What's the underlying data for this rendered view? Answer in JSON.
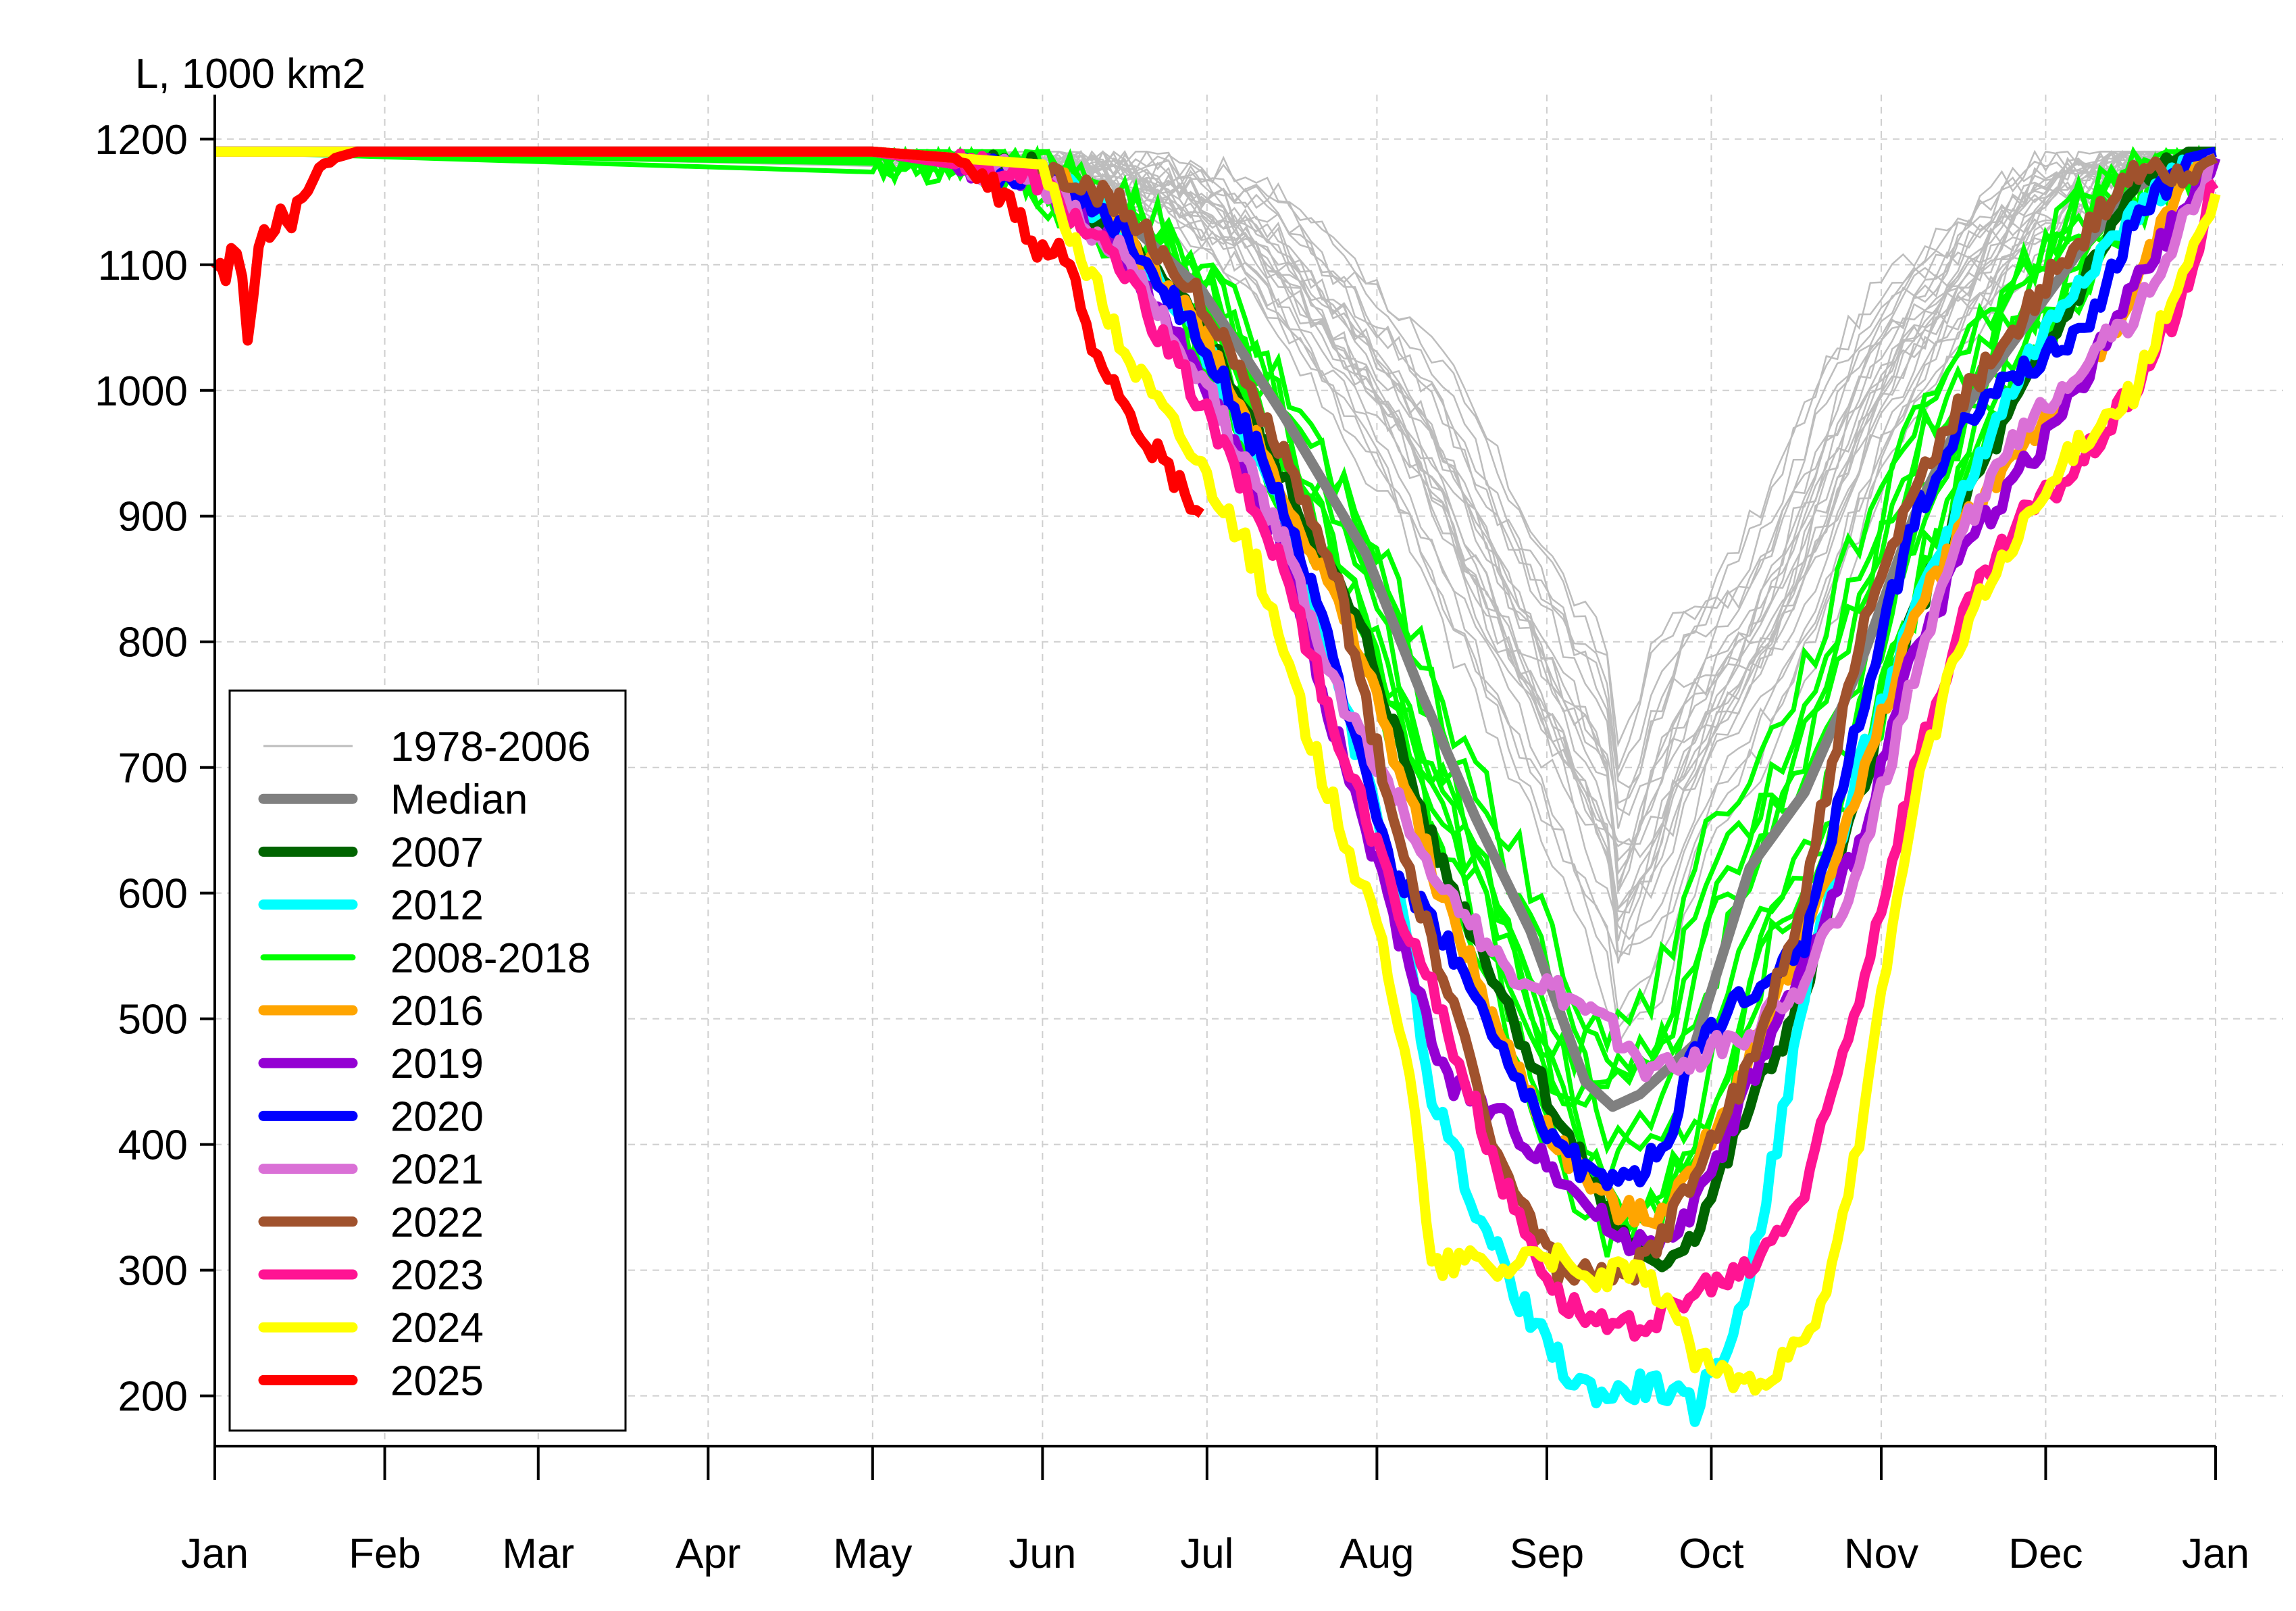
{
  "chart_data": {
    "type": "line",
    "title": "",
    "ylabel": "L, 1000 km2",
    "xlabel": "",
    "x_unit": "day of year",
    "xlim": [
      0,
      365
    ],
    "ylim": [
      160,
      1230
    ],
    "grid": true,
    "legend_position": "bottom-left",
    "x_ticks": [
      {
        "label": "Jan",
        "day": 0
      },
      {
        "label": "Feb",
        "day": 31
      },
      {
        "label": "Mar",
        "day": 59
      },
      {
        "label": "Apr",
        "day": 90
      },
      {
        "label": "May",
        "day": 120
      },
      {
        "label": "Jun",
        "day": 151
      },
      {
        "label": "Jul",
        "day": 181
      },
      {
        "label": "Aug",
        "day": 212
      },
      {
        "label": "Sep",
        "day": 243
      },
      {
        "label": "Oct",
        "day": 273
      },
      {
        "label": "Nov",
        "day": 304
      },
      {
        "label": "Dec",
        "day": 334
      },
      {
        "label": "Jan",
        "day": 365
      }
    ],
    "y_ticks": [
      200,
      300,
      400,
      500,
      600,
      700,
      800,
      900,
      1000,
      1100,
      1200
    ],
    "legend": [
      {
        "label": "1978-2006",
        "color": "#bdbdbd",
        "width": "thin"
      },
      {
        "label": "Median",
        "color": "#808080",
        "width": "thick"
      },
      {
        "label": "2007",
        "color": "#006400",
        "width": "thick"
      },
      {
        "label": "2012",
        "color": "#00ffff",
        "width": "thick"
      },
      {
        "label": "2008-2018",
        "color": "#00ff00",
        "width": "medium"
      },
      {
        "label": "2016",
        "color": "#ffa500",
        "width": "thick"
      },
      {
        "label": "2019",
        "color": "#9400d3",
        "width": "thick"
      },
      {
        "label": "2020",
        "color": "#0000ff",
        "width": "thick"
      },
      {
        "label": "2021",
        "color": "#da70d6",
        "width": "thick"
      },
      {
        "label": "2022",
        "color": "#a0522d",
        "width": "thick"
      },
      {
        "label": "2023",
        "color": "#ff1493",
        "width": "thick"
      },
      {
        "label": "2024",
        "color": "#ffff00",
        "width": "thick"
      },
      {
        "label": "2025",
        "color": "#ff0000",
        "width": "thick"
      }
    ],
    "series": [
      {
        "name": "Median",
        "color": "#808080",
        "width": "thick",
        "x": [
          0,
          120,
          150,
          165,
          180,
          195,
          210,
          220,
          230,
          240,
          250,
          255,
          260,
          265,
          270,
          280,
          290,
          300,
          310,
          320,
          330,
          340,
          350,
          360,
          365
        ],
        "y": [
          1190,
          1190,
          1180,
          1140,
          1080,
          980,
          870,
          760,
          660,
          570,
          450,
          430,
          440,
          460,
          480,
          620,
          680,
          780,
          900,
          990,
          1050,
          1110,
          1160,
          1185,
          1190
        ]
      },
      {
        "name": "2007",
        "color": "#006400",
        "width": "thick",
        "x": [
          0,
          120,
          150,
          165,
          180,
          195,
          210,
          222,
          235,
          245,
          255,
          262,
          270,
          280,
          290,
          300,
          310,
          320,
          330,
          340,
          350,
          360,
          365
        ],
        "y": [
          1190,
          1190,
          1175,
          1120,
          1050,
          930,
          800,
          640,
          520,
          420,
          340,
          300,
          330,
          430,
          520,
          680,
          820,
          920,
          1000,
          1080,
          1160,
          1190,
          1190
        ]
      },
      {
        "name": "2012",
        "color": "#00ffff",
        "width": "thick",
        "x": [
          0,
          120,
          150,
          165,
          180,
          195,
          205,
          215,
          222,
          232,
          240,
          248,
          255,
          262,
          270,
          278,
          285,
          292,
          300,
          310,
          320,
          330,
          340,
          350,
          360,
          365
        ],
        "y": [
          1190,
          1190,
          1180,
          1130,
          1040,
          900,
          760,
          620,
          440,
          330,
          260,
          210,
          200,
          210,
          190,
          260,
          400,
          560,
          700,
          820,
          930,
          1020,
          1090,
          1140,
          1180,
          1185
        ]
      },
      {
        "name": "2016",
        "color": "#ffa500",
        "width": "thick",
        "x": [
          0,
          120,
          150,
          165,
          180,
          195,
          210,
          222,
          235,
          245,
          255,
          262,
          270,
          280,
          290,
          300,
          310,
          320,
          330,
          340,
          350,
          360,
          365
        ],
        "y": [
          1190,
          1190,
          1180,
          1130,
          1050,
          920,
          780,
          620,
          480,
          400,
          350,
          340,
          380,
          470,
          570,
          680,
          820,
          900,
          960,
          1000,
          1080,
          1170,
          1185
        ]
      },
      {
        "name": "2019",
        "color": "#9400d3",
        "width": "thick",
        "x": [
          0,
          120,
          150,
          165,
          180,
          195,
          205,
          215,
          225,
          235,
          245,
          255,
          262,
          270,
          280,
          290,
          300,
          310,
          320,
          330,
          340,
          350,
          360,
          365
        ],
        "y": [
          1190,
          1190,
          1170,
          1110,
          1010,
          870,
          720,
          580,
          450,
          420,
          380,
          330,
          320,
          350,
          450,
          540,
          640,
          790,
          880,
          940,
          1000,
          1080,
          1150,
          1185
        ]
      },
      {
        "name": "2020",
        "color": "#0000ff",
        "width": "thick",
        "x": [
          0,
          120,
          150,
          165,
          180,
          195,
          205,
          215,
          225,
          235,
          245,
          250,
          258,
          265,
          270,
          280,
          290,
          300,
          310,
          320,
          330,
          340,
          350,
          360,
          365
        ],
        "y": [
          1190,
          1190,
          1170,
          1130,
          1040,
          910,
          770,
          620,
          560,
          470,
          400,
          380,
          370,
          400,
          480,
          520,
          560,
          740,
          900,
          980,
          1020,
          1040,
          1130,
          1185,
          1190
        ]
      },
      {
        "name": "2021",
        "color": "#da70d6",
        "width": "thick",
        "x": [
          0,
          120,
          150,
          165,
          180,
          195,
          205,
          215,
          225,
          235,
          245,
          255,
          262,
          270,
          280,
          290,
          300,
          310,
          320,
          330,
          340,
          350,
          360,
          365
        ],
        "y": [
          1190,
          1190,
          1170,
          1110,
          1010,
          880,
          760,
          680,
          600,
          540,
          520,
          490,
          460,
          470,
          490,
          530,
          620,
          770,
          900,
          970,
          1020,
          1060,
          1140,
          1185
        ]
      },
      {
        "name": "2022",
        "color": "#a0522d",
        "width": "thick",
        "x": [
          0,
          120,
          150,
          165,
          180,
          195,
          205,
          215,
          225,
          235,
          245,
          255,
          262,
          270,
          280,
          290,
          300,
          310,
          320,
          330,
          340,
          350,
          360,
          365
        ],
        "y": [
          1190,
          1190,
          1180,
          1150,
          1070,
          950,
          840,
          660,
          520,
          380,
          300,
          290,
          310,
          380,
          460,
          600,
          800,
          920,
          1000,
          1060,
          1120,
          1170,
          1175,
          1185
        ]
      },
      {
        "name": "2023",
        "color": "#ff1493",
        "width": "thick",
        "x": [
          0,
          120,
          150,
          165,
          180,
          195,
          205,
          215,
          225,
          235,
          245,
          255,
          262,
          270,
          280,
          290,
          300,
          310,
          320,
          330,
          340,
          350,
          360,
          365
        ],
        "y": [
          1190,
          1190,
          1170,
          1100,
          990,
          860,
          720,
          600,
          490,
          370,
          280,
          250,
          260,
          280,
          300,
          360,
          520,
          700,
          830,
          900,
          940,
          1000,
          1080,
          1175
        ]
      },
      {
        "name": "2024",
        "color": "#ffff00",
        "width": "thick",
        "x": [
          0,
          120,
          150,
          158,
          165,
          172,
          180,
          190,
          200,
          208,
          213,
          218,
          222,
          228,
          235,
          242,
          250,
          258,
          265,
          270,
          278,
          285,
          292,
          300,
          310,
          320,
          330,
          340,
          350,
          358,
          365
        ],
        "y": [
          1190,
          1190,
          1180,
          1110,
          1040,
          990,
          940,
          860,
          720,
          620,
          560,
          460,
          300,
          310,
          300,
          320,
          290,
          300,
          280,
          230,
          210,
          220,
          250,
          400,
          680,
          820,
          890,
          960,
          1000,
          1080,
          1150
        ]
      },
      {
        "name": "2025",
        "color": "#ff0000",
        "width": "thick",
        "x": [
          0,
          2,
          4,
          6,
          8,
          10,
          14,
          18,
          22,
          26,
          30,
          40,
          60,
          90,
          120,
          135,
          145,
          150,
          155,
          160,
          165,
          170,
          175,
          180
        ],
        "y": [
          1100,
          1090,
          1115,
          1050,
          1110,
          1130,
          1140,
          1170,
          1185,
          1190,
          1190,
          1190,
          1190,
          1190,
          1190,
          1185,
          1150,
          1110,
          1110,
          1040,
          1000,
          960,
          930,
          900
        ]
      }
    ]
  }
}
